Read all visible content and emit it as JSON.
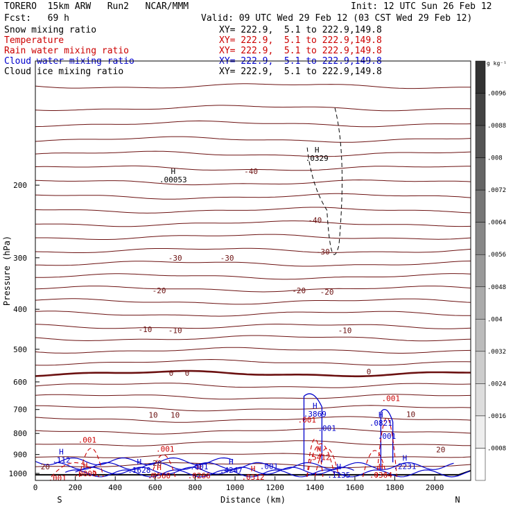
{
  "header": {
    "title_left": "TORERO  15km ARW   Run2   NCAR/MMM",
    "init": "Init: 12 UTC Sun 26 Feb 12",
    "fcst": "Fcst:   69 h",
    "valid": "Valid: 09 UTC Wed 29 Feb 12 (03 CST Wed 29 Feb 12)"
  },
  "legend": [
    {
      "name": "Snow mixing ratio",
      "xy": "XY= 222.9,  5.1 to 222.9,149.8",
      "color": "#000000"
    },
    {
      "name": "Temperature",
      "xy": "XY= 222.9,  5.1 to 222.9,149.8",
      "color": "#cc0000"
    },
    {
      "name": "Rain water mixing ratio",
      "xy": "XY= 222.9,  5.1 to 222.9,149.8",
      "color": "#cc0000"
    },
    {
      "name": "Cloud water mixing ratio",
      "xy": "XY= 222.9,  5.1 to 222.9,149.8",
      "color": "#0000cc"
    },
    {
      "name": "Cloud ice mixing ratio",
      "xy": "XY= 222.9,  5.1 to 222.9,149.8",
      "color": "#000000"
    }
  ],
  "chart_data": {
    "type": "contour-cross-section",
    "xlabel": "Distance (km)",
    "ylabel": "Pressure (hPa)",
    "x_ticks": [
      0,
      200,
      400,
      600,
      800,
      1000,
      1200,
      1400,
      1600,
      1800,
      2000
    ],
    "y_ticks": [
      200,
      300,
      400,
      500,
      600,
      700,
      800,
      900,
      1000
    ],
    "xlim": [
      0,
      2180
    ],
    "ylim": [
      1040,
      100
    ],
    "y_scale": "log",
    "end_left": "S",
    "end_right": "N",
    "colorbar": {
      "unit": "g kg⁻¹",
      "labels": [
        ".0096",
        ".0088",
        ".008",
        ".0072",
        ".0064",
        ".0056",
        ".0048",
        ".004",
        ".0032",
        ".0024",
        ".0016",
        ".0008"
      ]
    },
    "temperature_labels": [
      {
        "x": 1080,
        "p": 185,
        "text": "-40"
      },
      {
        "x": 1400,
        "p": 243,
        "text": "-40"
      },
      {
        "x": 700,
        "p": 300,
        "text": "-30"
      },
      {
        "x": 960,
        "p": 300,
        "text": "-30"
      },
      {
        "x": 1440,
        "p": 290,
        "text": "-30"
      },
      {
        "x": 620,
        "p": 360,
        "text": "-20"
      },
      {
        "x": 1320,
        "p": 360,
        "text": "-20"
      },
      {
        "x": 1460,
        "p": 363,
        "text": "-20"
      },
      {
        "x": 550,
        "p": 447,
        "text": "-10"
      },
      {
        "x": 700,
        "p": 450,
        "text": "-10"
      },
      {
        "x": 1550,
        "p": 450,
        "text": "-10"
      },
      {
        "x": 680,
        "p": 571,
        "text": "0"
      },
      {
        "x": 760,
        "p": 571,
        "text": "0"
      },
      {
        "x": 1670,
        "p": 566,
        "text": "0"
      },
      {
        "x": 590,
        "p": 722,
        "text": "10"
      },
      {
        "x": 700,
        "p": 722,
        "text": "10"
      },
      {
        "x": 1880,
        "p": 718,
        "text": "10"
      },
      {
        "x": 2030,
        "p": 876,
        "text": "20"
      },
      {
        "x": 50,
        "p": 962,
        "text": "20"
      },
      {
        "x": 610,
        "p": 944,
        "text": "20"
      }
    ],
    "extrema_labels": [
      {
        "x": 690,
        "p": 194,
        "mark": "H",
        "value": ".00053",
        "color": "#000000"
      },
      {
        "x": 1410,
        "p": 172,
        "mark": "H",
        "value": ".0329",
        "color": "#000000"
      },
      {
        "x": 1400,
        "p": 717,
        "mark": "H",
        "value": ".3869",
        "color": "#0000cc"
      },
      {
        "x": 1730,
        "p": 754,
        "mark": "H",
        "value": ".0821",
        "color": "#0000cc"
      },
      {
        "x": 1460,
        "p": 776,
        "mark": "",
        "value": ".001",
        "color": "#0000cc"
      },
      {
        "x": 1760,
        "p": 812,
        "mark": "",
        "value": ".001",
        "color": "#0000cc"
      },
      {
        "x": 260,
        "p": 829,
        "mark": "",
        "value": ".001",
        "color": "#cc0000"
      },
      {
        "x": 1780,
        "p": 658,
        "mark": "",
        "value": ".001",
        "color": "#cc0000"
      },
      {
        "x": 1360,
        "p": 741,
        "mark": "",
        "value": ".001",
        "color": "#cc0000"
      },
      {
        "x": 650,
        "p": 872,
        "mark": "",
        "value": ".001",
        "color": "#cc0000"
      },
      {
        "x": 130,
        "p": 928,
        "mark": "H",
        "value": ".112",
        "color": "#0000cc"
      },
      {
        "x": 1420,
        "p": 913,
        "mark": "H",
        "value": ".5412",
        "color": "#cc0000"
      },
      {
        "x": 250,
        "p": 1000,
        "mark": "H",
        "value": ".0009",
        "color": "#cc0000"
      },
      {
        "x": 520,
        "p": 981,
        "mark": "H",
        "value": ".1628",
        "color": "#0000cc"
      },
      {
        "x": 620,
        "p": 1012,
        "mark": "H",
        "value": ".0560",
        "color": "#cc0000"
      },
      {
        "x": 820,
        "p": 1012,
        "mark": "H",
        "value": ".0266",
        "color": "#cc0000"
      },
      {
        "x": 980,
        "p": 981,
        "mark": "H",
        "value": ".4247",
        "color": "#0000cc"
      },
      {
        "x": 820,
        "p": 962,
        "mark": "",
        "value": ".001",
        "color": "#0000cc"
      },
      {
        "x": 1170,
        "p": 960,
        "mark": "",
        "value": ".001",
        "color": "#0000cc"
      },
      {
        "x": 1090,
        "p": 1021,
        "mark": "H",
        "value": ".0312",
        "color": "#cc0000"
      },
      {
        "x": 1520,
        "p": 1009,
        "mark": "H",
        "value": ".1135",
        "color": "#0000cc"
      },
      {
        "x": 1730,
        "p": 1009,
        "mark": "H",
        "value": ".0364",
        "color": "#cc0000"
      },
      {
        "x": 1850,
        "p": 960,
        "mark": "H",
        "value": ".2231",
        "color": "#0000cc"
      },
      {
        "x": 110,
        "p": 1026,
        "mark": "",
        "value": ".001",
        "color": "#cc0000"
      }
    ]
  }
}
